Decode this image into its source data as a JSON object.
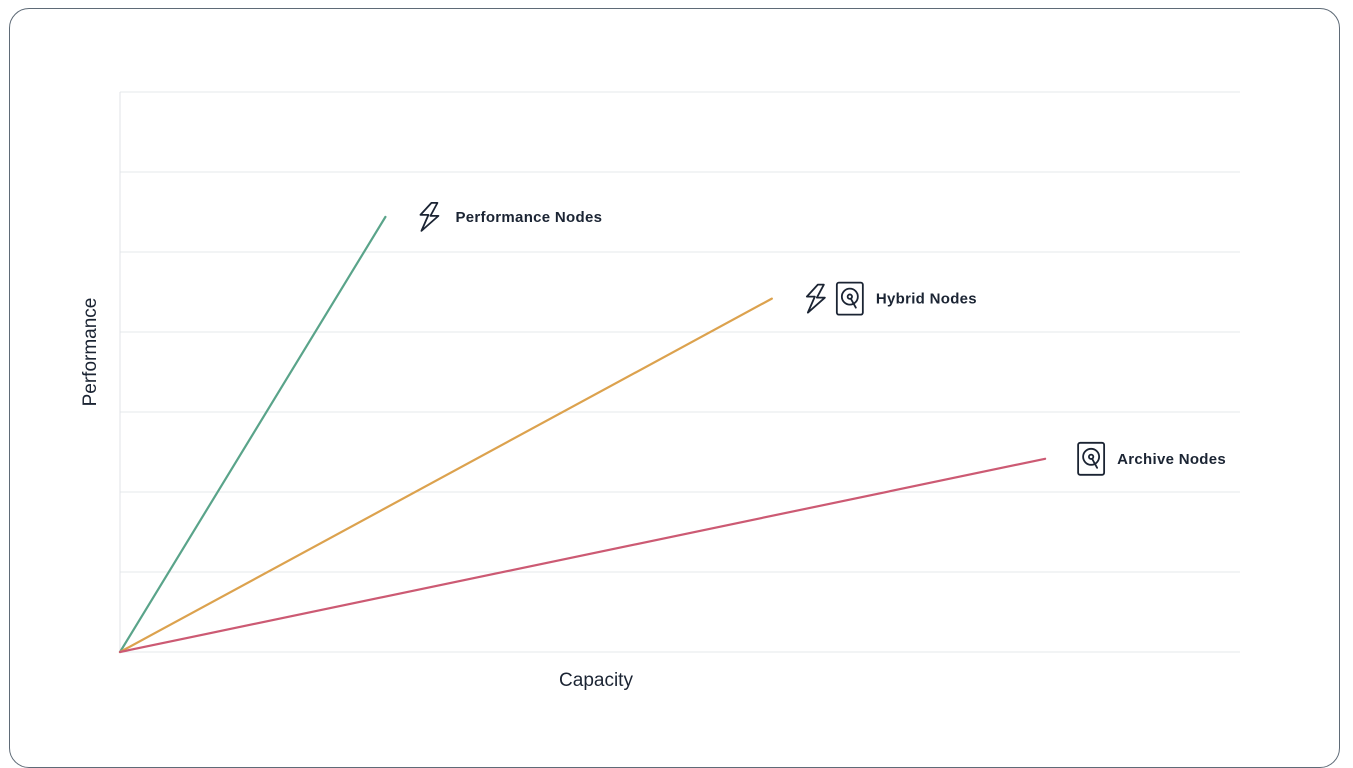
{
  "chart_data": {
    "type": "line",
    "xlabel": "Capacity",
    "ylabel": "Performance",
    "xlim": [
      0,
      1
    ],
    "ylim": [
      0,
      1
    ],
    "grid": true,
    "grid_lines": 7,
    "show_tick_labels": false,
    "legend": "inline labels at line ends",
    "series": [
      {
        "name": "Performance Nodes",
        "color": "#5aa48a",
        "icons": [
          "lightning-icon"
        ],
        "x": [
          0,
          0.237
        ],
        "y": [
          0,
          0.777
        ]
      },
      {
        "name": "Hybrid Nodes",
        "color": "#dca24e",
        "icons": [
          "lightning-icon",
          "hard-drive-icon"
        ],
        "x": [
          0,
          0.582
        ],
        "y": [
          0,
          0.631
        ]
      },
      {
        "name": "Archive Nodes",
        "color": "#cc5a73",
        "icons": [
          "hard-drive-icon"
        ],
        "x": [
          0,
          0.826
        ],
        "y": [
          0,
          0.345
        ]
      }
    ]
  },
  "colors": {
    "grid": "#e6e8eb",
    "axis": "#e0e3e7",
    "text": "#1b2433",
    "card_border": "#5f6b77"
  }
}
